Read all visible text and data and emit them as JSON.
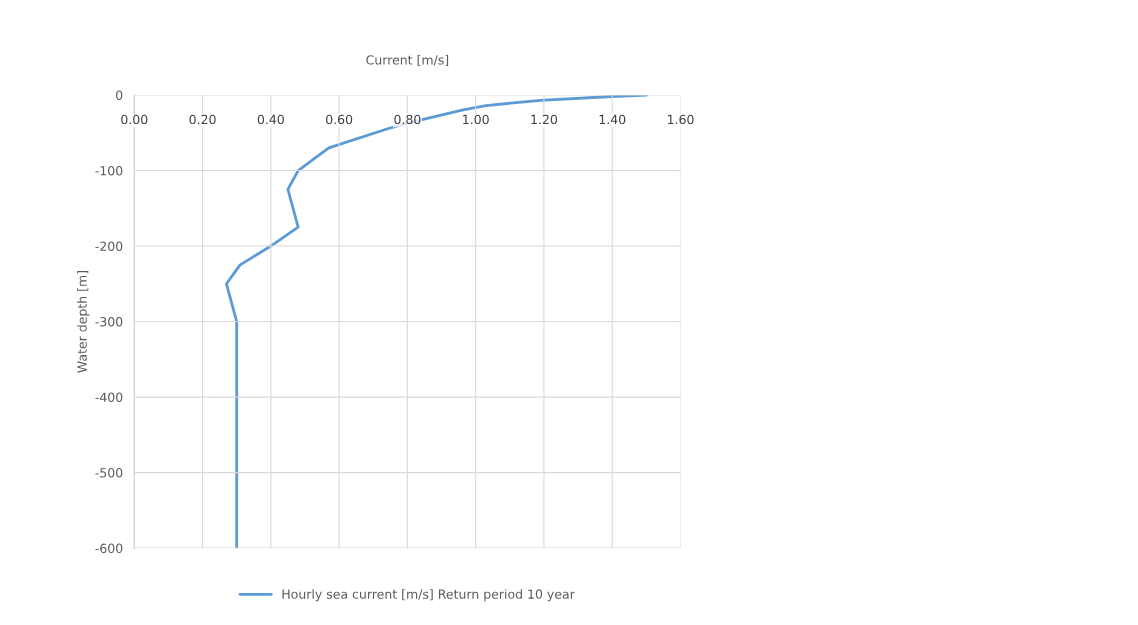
{
  "chart_data": {
    "type": "line",
    "xlabel": "Current [m/s]",
    "ylabel": "Water depth [m]",
    "series": [
      {
        "name": "Hourly sea current [m/s] Return period 10 year",
        "color": "#5b9bd5",
        "x": [
          1.5,
          1.4,
          1.19,
          1.03,
          0.96,
          0.84,
          0.78,
          0.74,
          0.57,
          0.54,
          0.48,
          0.45,
          0.48,
          0.4,
          0.31,
          0.27,
          0.3,
          0.3
        ],
        "values": [
          0,
          -2,
          -7,
          -14,
          -20,
          -33,
          -40,
          -45,
          -70,
          -80,
          -100,
          -125,
          -175,
          -200,
          -225,
          -250,
          -300,
          -600
        ]
      }
    ],
    "xlim": [
      0,
      1.6
    ],
    "xticks": [
      {
        "value": 0,
        "label": "0.00"
      },
      {
        "value": 0.2,
        "label": "0.20"
      },
      {
        "value": 0.4,
        "label": "0.40"
      },
      {
        "value": 0.6,
        "label": "0.60"
      },
      {
        "value": 0.8,
        "label": "0.80"
      },
      {
        "value": 1.0,
        "label": "1.00"
      },
      {
        "value": 1.2,
        "label": "1.20"
      },
      {
        "value": 1.4,
        "label": "1.40"
      },
      {
        "value": 1.6,
        "label": "1.60"
      }
    ],
    "ylim": [
      -600,
      0
    ],
    "yticks": [
      0,
      -100,
      -200,
      -300,
      -400,
      -500,
      -600
    ],
    "grid": true,
    "legend": "bottom"
  }
}
